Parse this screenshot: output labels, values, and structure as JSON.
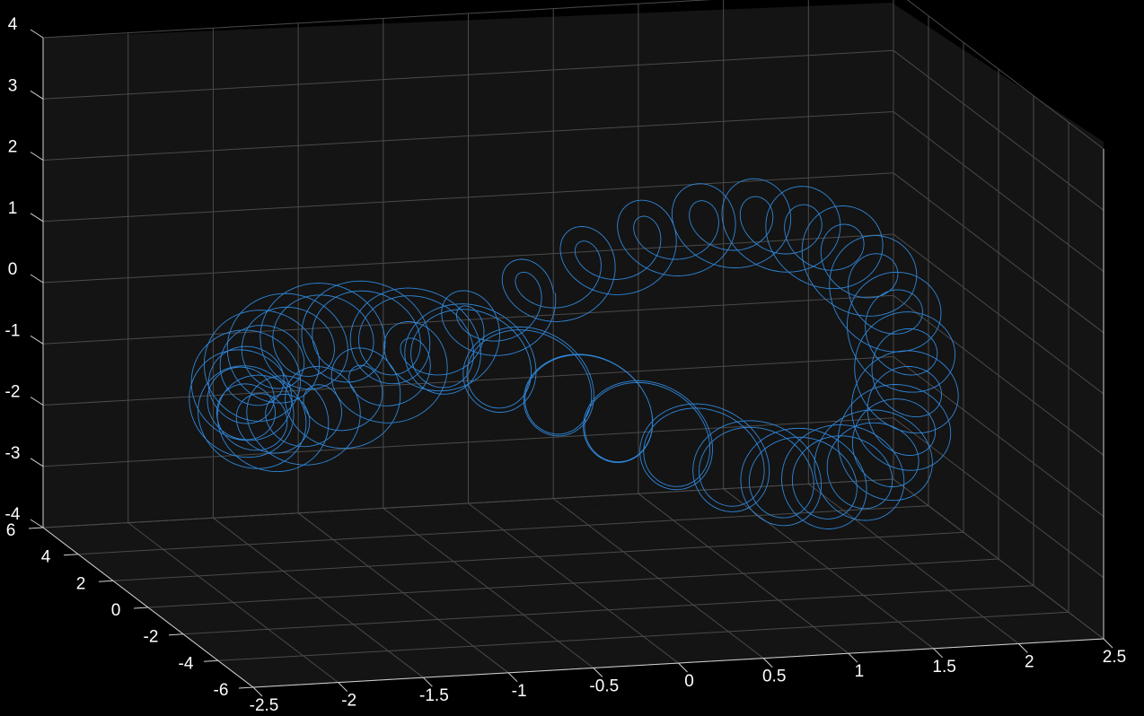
{
  "chart_data": {
    "type": "line",
    "plot_kind": "3d-line",
    "title": "",
    "xlabel": "",
    "ylabel": "",
    "zlabel": "",
    "grid": true,
    "colors": {
      "background": "#000000",
      "plot_box": "#141414",
      "grid": "#4a4a4a",
      "axis": "#d0d0d0",
      "text": "#ffffff",
      "series": "#2f86d8"
    },
    "axes": {
      "x": {
        "lim": [
          -2.5,
          2.5
        ],
        "ticks": [
          -2.5,
          -2,
          -1.5,
          -1,
          -0.5,
          0,
          0.5,
          1,
          1.5,
          2,
          2.5
        ],
        "tick_labels": [
          "-2.5",
          "-2",
          "-1.5",
          "-1",
          "-0.5",
          "0",
          "0.5",
          "1",
          "1.5",
          "2",
          "2.5"
        ]
      },
      "y": {
        "lim": [
          -6,
          6
        ],
        "ticks": [
          -6,
          -4,
          -2,
          0,
          2,
          4,
          6
        ],
        "tick_labels": [
          "-6",
          "-4",
          "-2",
          "0",
          "2",
          "4",
          "6"
        ]
      },
      "z": {
        "lim": [
          -4,
          4
        ],
        "ticks": [
          -4,
          -3,
          -2,
          -1,
          0,
          1,
          2,
          3,
          4
        ],
        "tick_labels": [
          "-4",
          "-3",
          "-2",
          "-1",
          "0",
          "1",
          "2",
          "3",
          "4"
        ]
      }
    },
    "series": [
      {
        "shape": "figure-eight torus knot (Lorenz-like attractor)",
        "x_range": [
          -2.1,
          2.1
        ],
        "y_range": [
          -5,
          5
        ],
        "z_range": [
          -3.6,
          3.0
        ],
        "lobes": [
          {
            "center": [
              -1.05,
              0,
              -0.4
            ],
            "radius": 1.0,
            "tube_radius": 0.45
          },
          {
            "center": [
              1.05,
              0,
              -0.4
            ],
            "radius": 1.0,
            "tube_radius": 0.45
          }
        ]
      }
    ]
  }
}
